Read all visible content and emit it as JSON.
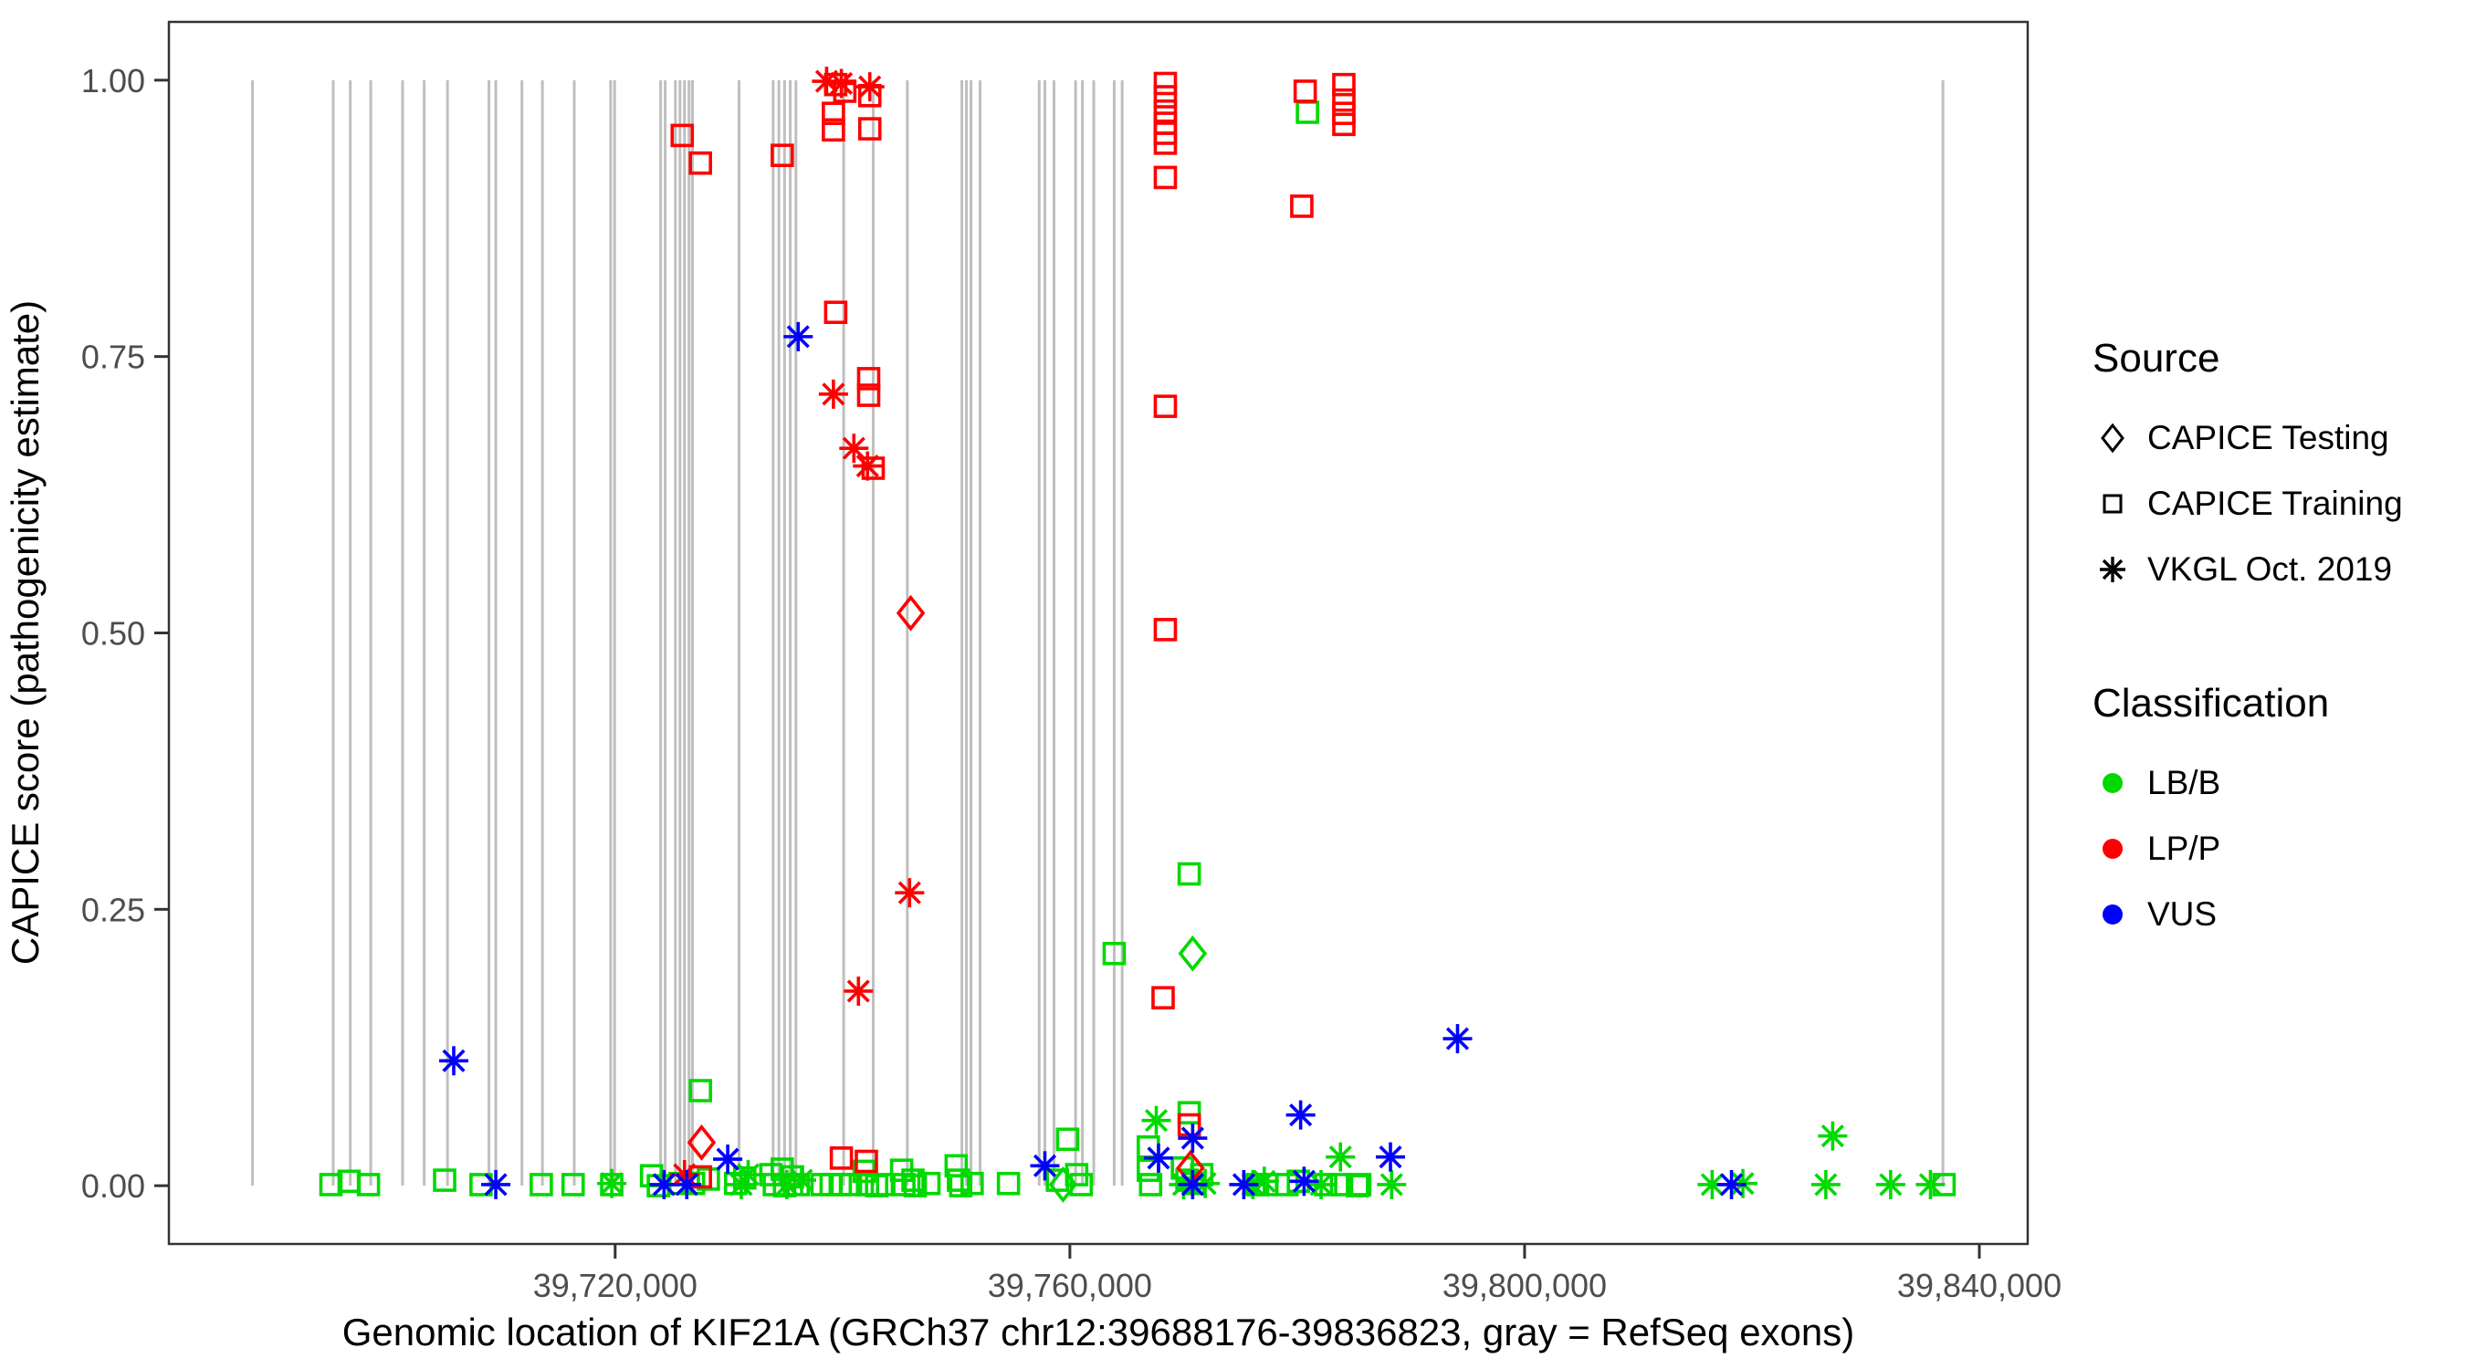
{
  "colors": {
    "LB/B": "#00D900",
    "LP/P": "#FF0000",
    "VUS": "#0000FF",
    "exon": "#BFBFBF",
    "axis_text": "#4D4D4D",
    "panel_border": "#333333",
    "legend_key": "#000000"
  },
  "legend": {
    "source": {
      "title": "Source",
      "items": [
        {
          "symbol": "diamond-open",
          "label": "CAPICE Testing"
        },
        {
          "symbol": "square-open",
          "label": "CAPICE Training"
        },
        {
          "symbol": "asterisk",
          "label": "VKGL Oct. 2019"
        }
      ]
    },
    "classification": {
      "title": "Classification",
      "items": [
        {
          "symbol": "circle",
          "label": "LB/B",
          "color": "#00D900"
        },
        {
          "symbol": "circle",
          "label": "LP/P",
          "color": "#FF0000"
        },
        {
          "symbol": "circle",
          "label": "VUS",
          "color": "#0000FF"
        }
      ]
    }
  },
  "chart_data": {
    "type": "scatter",
    "title": "",
    "xlabel": "Genomic location of KIF21A (GRCh37 chr12:39688176-39836823, gray = RefSeq exons)",
    "ylabel": "CAPICE score (pathogenicity estimate)",
    "gene_range": [
      39688176,
      39836823
    ],
    "x_range_shown": [
      39680744,
      39844255
    ],
    "y_range_shown": [
      -0.0527,
      1.0527
    ],
    "grid": false,
    "legend_position": "right",
    "x_ticks": [
      {
        "value": 39720000,
        "label": "39,720,000"
      },
      {
        "value": 39760000,
        "label": "39,760,000"
      },
      {
        "value": 39800000,
        "label": "39,800,000"
      },
      {
        "value": 39840000,
        "label": "39,840,000"
      }
    ],
    "y_ticks": [
      {
        "value": 0.0,
        "label": "0.00"
      },
      {
        "value": 0.25,
        "label": "0.25"
      },
      {
        "value": 0.5,
        "label": "0.50"
      },
      {
        "value": 0.75,
        "label": "0.75"
      },
      {
        "value": 1.0,
        "label": "1.00"
      }
    ],
    "exons": [
      39688100,
      39695200,
      39696700,
      39698500,
      39701300,
      39703200,
      39705250,
      39708900,
      39709500,
      39711800,
      39713600,
      39716400,
      39719600,
      39719950,
      39724000,
      39724400,
      39725300,
      39725700,
      39726100,
      39726500,
      39726800,
      39730900,
      39733900,
      39734400,
      39734900,
      39735400,
      39735900,
      39740100,
      39742700,
      39745700,
      39750500,
      39750900,
      39751300,
      39752100,
      39757300,
      39757800,
      39758600,
      39760500,
      39761100,
      39762100,
      39763900,
      39764600,
      39836800
    ],
    "points": [
      {
        "x": 39695000,
        "y": 0.001,
        "class": "LB/B",
        "source": "training"
      },
      {
        "x": 39696600,
        "y": 0.004,
        "class": "LB/B",
        "source": "training"
      },
      {
        "x": 39698300,
        "y": 0.001,
        "class": "LB/B",
        "source": "training"
      },
      {
        "x": 39705000,
        "y": 0.005,
        "class": "LB/B",
        "source": "training"
      },
      {
        "x": 39708200,
        "y": 0.001,
        "class": "LB/B",
        "source": "training"
      },
      {
        "x": 39713500,
        "y": 0.001,
        "class": "LB/B",
        "source": "training"
      },
      {
        "x": 39716300,
        "y": 0.001,
        "class": "LB/B",
        "source": "training"
      },
      {
        "x": 39719700,
        "y": 0.001,
        "class": "LB/B",
        "source": "training"
      },
      {
        "x": 39719700,
        "y": 0.002,
        "class": "LB/B",
        "source": "vkgl"
      },
      {
        "x": 39723200,
        "y": 0.009,
        "class": "LB/B",
        "source": "training"
      },
      {
        "x": 39723800,
        "y": 0.0,
        "class": "LB/B",
        "source": "training"
      },
      {
        "x": 39725700,
        "y": 0.002,
        "class": "LB/B",
        "source": "training"
      },
      {
        "x": 39726900,
        "y": 0.002,
        "class": "LB/B",
        "source": "training"
      },
      {
        "x": 39728200,
        "y": 0.006,
        "class": "LB/B",
        "source": "training"
      },
      {
        "x": 39727500,
        "y": 0.086,
        "class": "LB/B",
        "source": "training"
      },
      {
        "x": 39730600,
        "y": 0.002,
        "class": "LB/B",
        "source": "training"
      },
      {
        "x": 39731400,
        "y": 0.007,
        "class": "LB/B",
        "source": "training"
      },
      {
        "x": 39731100,
        "y": 0.001,
        "class": "LB/B",
        "source": "vkgl"
      },
      {
        "x": 39731700,
        "y": 0.01,
        "class": "LB/B",
        "source": "vkgl"
      },
      {
        "x": 39733700,
        "y": 0.01,
        "class": "LB/B",
        "source": "training"
      },
      {
        "x": 39734000,
        "y": 0.001,
        "class": "LB/B",
        "source": "training"
      },
      {
        "x": 39734700,
        "y": 0.015,
        "class": "LB/B",
        "source": "training"
      },
      {
        "x": 39734900,
        "y": 0.0,
        "class": "LB/B",
        "source": "training"
      },
      {
        "x": 39735600,
        "y": 0.008,
        "class": "LB/B",
        "source": "training"
      },
      {
        "x": 39736100,
        "y": 0.001,
        "class": "LB/B",
        "source": "training"
      },
      {
        "x": 39735100,
        "y": 0.001,
        "class": "LB/B",
        "source": "vkgl"
      },
      {
        "x": 39736400,
        "y": 0.005,
        "class": "LB/B",
        "source": "vkgl"
      },
      {
        "x": 39738200,
        "y": 0.001,
        "class": "LB/B",
        "source": "training"
      },
      {
        "x": 39739000,
        "y": 0.001,
        "class": "LB/B",
        "source": "training"
      },
      {
        "x": 39739800,
        "y": 0.001,
        "class": "LB/B",
        "source": "training"
      },
      {
        "x": 39740700,
        "y": 0.001,
        "class": "LB/B",
        "source": "training"
      },
      {
        "x": 39741900,
        "y": 0.013,
        "class": "LB/B",
        "source": "training"
      },
      {
        "x": 39742200,
        "y": 0.001,
        "class": "LB/B",
        "source": "training"
      },
      {
        "x": 39743000,
        "y": 0.0,
        "class": "LB/B",
        "source": "training"
      },
      {
        "x": 39743500,
        "y": 0.001,
        "class": "LB/B",
        "source": "training"
      },
      {
        "x": 39745200,
        "y": 0.014,
        "class": "LB/B",
        "source": "training"
      },
      {
        "x": 39745400,
        "y": 0.001,
        "class": "LB/B",
        "source": "training"
      },
      {
        "x": 39746200,
        "y": 0.005,
        "class": "LB/B",
        "source": "training"
      },
      {
        "x": 39746400,
        "y": 0.0,
        "class": "LB/B",
        "source": "training"
      },
      {
        "x": 39747600,
        "y": 0.002,
        "class": "LB/B",
        "source": "training"
      },
      {
        "x": 39750000,
        "y": 0.018,
        "class": "LB/B",
        "source": "training"
      },
      {
        "x": 39750200,
        "y": 0.005,
        "class": "LB/B",
        "source": "training"
      },
      {
        "x": 39750400,
        "y": 0.0,
        "class": "LB/B",
        "source": "training"
      },
      {
        "x": 39751400,
        "y": 0.002,
        "class": "LB/B",
        "source": "training"
      },
      {
        "x": 39754600,
        "y": 0.002,
        "class": "LB/B",
        "source": "training"
      },
      {
        "x": 39758900,
        "y": 0.005,
        "class": "LB/B",
        "source": "training"
      },
      {
        "x": 39759400,
        "y": 0.001,
        "class": "LB/B",
        "source": "testing"
      },
      {
        "x": 39760600,
        "y": 0.01,
        "class": "LB/B",
        "source": "training"
      },
      {
        "x": 39761000,
        "y": 0.001,
        "class": "LB/B",
        "source": "training"
      },
      {
        "x": 39759800,
        "y": 0.042,
        "class": "LB/B",
        "source": "training"
      },
      {
        "x": 39763900,
        "y": 0.21,
        "class": "LB/B",
        "source": "training"
      },
      {
        "x": 39766900,
        "y": 0.035,
        "class": "LB/B",
        "source": "training"
      },
      {
        "x": 39766900,
        "y": 0.014,
        "class": "LB/B",
        "source": "training"
      },
      {
        "x": 39767100,
        "y": 0.001,
        "class": "LB/B",
        "source": "training"
      },
      {
        "x": 39767600,
        "y": 0.059,
        "class": "LB/B",
        "source": "vkgl"
      },
      {
        "x": 39770500,
        "y": 0.282,
        "class": "LB/B",
        "source": "training"
      },
      {
        "x": 39770800,
        "y": 0.21,
        "class": "LB/B",
        "source": "testing"
      },
      {
        "x": 39770500,
        "y": 0.066,
        "class": "LB/B",
        "source": "training"
      },
      {
        "x": 39769900,
        "y": 0.016,
        "class": "LB/B",
        "source": "training"
      },
      {
        "x": 39770300,
        "y": 0.005,
        "class": "LB/B",
        "source": "training"
      },
      {
        "x": 39770000,
        "y": 0.001,
        "class": "LB/B",
        "source": "vkgl"
      },
      {
        "x": 39770900,
        "y": 0.002,
        "class": "LB/B",
        "source": "training"
      },
      {
        "x": 39771600,
        "y": 0.01,
        "class": "LB/B",
        "source": "training"
      },
      {
        "x": 39771900,
        "y": 0.002,
        "class": "LB/B",
        "source": "vkgl"
      },
      {
        "x": 39776100,
        "y": 0.001,
        "class": "LB/B",
        "source": "vkgl"
      },
      {
        "x": 39776500,
        "y": 0.001,
        "class": "LB/B",
        "source": "training"
      },
      {
        "x": 39777100,
        "y": 0.004,
        "class": "LB/B",
        "source": "vkgl"
      },
      {
        "x": 39777300,
        "y": 0.001,
        "class": "LB/B",
        "source": "training"
      },
      {
        "x": 39779100,
        "y": 0.001,
        "class": "LB/B",
        "source": "training"
      },
      {
        "x": 39780100,
        "y": 0.004,
        "class": "LB/B",
        "source": "training"
      },
      {
        "x": 39782100,
        "y": 0.001,
        "class": "LB/B",
        "source": "vkgl"
      },
      {
        "x": 39782500,
        "y": 0.001,
        "class": "LB/B",
        "source": "training"
      },
      {
        "x": 39783800,
        "y": 0.026,
        "class": "LB/B",
        "source": "vkgl"
      },
      {
        "x": 39783900,
        "y": 0.001,
        "class": "LB/B",
        "source": "training"
      },
      {
        "x": 39785300,
        "y": 0.0,
        "class": "LB/B",
        "source": "training"
      },
      {
        "x": 39785500,
        "y": 0.001,
        "class": "LB/B",
        "source": "training"
      },
      {
        "x": 39788300,
        "y": 0.001,
        "class": "LB/B",
        "source": "vkgl"
      },
      {
        "x": 39780900,
        "y": 0.971,
        "class": "LB/B",
        "source": "training"
      },
      {
        "x": 39816500,
        "y": 0.001,
        "class": "LB/B",
        "source": "vkgl"
      },
      {
        "x": 39819200,
        "y": 0.002,
        "class": "LB/B",
        "source": "vkgl"
      },
      {
        "x": 39826500,
        "y": 0.001,
        "class": "LB/B",
        "source": "vkgl"
      },
      {
        "x": 39827100,
        "y": 0.045,
        "class": "LB/B",
        "source": "vkgl"
      },
      {
        "x": 39832200,
        "y": 0.001,
        "class": "LB/B",
        "source": "vkgl"
      },
      {
        "x": 39835700,
        "y": 0.001,
        "class": "LB/B",
        "source": "vkgl"
      },
      {
        "x": 39836900,
        "y": 0.001,
        "class": "LB/B",
        "source": "training"
      },
      {
        "x": 39725900,
        "y": 0.95,
        "class": "LP/P",
        "source": "training"
      },
      {
        "x": 39727500,
        "y": 0.925,
        "class": "LP/P",
        "source": "training"
      },
      {
        "x": 39734700,
        "y": 0.932,
        "class": "LP/P",
        "source": "training"
      },
      {
        "x": 39738600,
        "y": 0.999,
        "class": "LP/P",
        "source": "vkgl"
      },
      {
        "x": 39739900,
        "y": 0.997,
        "class": "LP/P",
        "source": "vkgl"
      },
      {
        "x": 39739400,
        "y": 0.996,
        "class": "LP/P",
        "source": "training"
      },
      {
        "x": 39740200,
        "y": 0.99,
        "class": "LP/P",
        "source": "training"
      },
      {
        "x": 39739200,
        "y": 0.97,
        "class": "LP/P",
        "source": "training"
      },
      {
        "x": 39739200,
        "y": 0.955,
        "class": "LP/P",
        "source": "training"
      },
      {
        "x": 39742400,
        "y": 0.994,
        "class": "LP/P",
        "source": "vkgl"
      },
      {
        "x": 39742400,
        "y": 0.986,
        "class": "LP/P",
        "source": "training"
      },
      {
        "x": 39742400,
        "y": 0.956,
        "class": "LP/P",
        "source": "training"
      },
      {
        "x": 39739400,
        "y": 0.79,
        "class": "LP/P",
        "source": "training"
      },
      {
        "x": 39739200,
        "y": 0.716,
        "class": "LP/P",
        "source": "vkgl"
      },
      {
        "x": 39742300,
        "y": 0.73,
        "class": "LP/P",
        "source": "training"
      },
      {
        "x": 39742300,
        "y": 0.715,
        "class": "LP/P",
        "source": "training"
      },
      {
        "x": 39741000,
        "y": 0.667,
        "class": "LP/P",
        "source": "vkgl"
      },
      {
        "x": 39742200,
        "y": 0.651,
        "class": "LP/P",
        "source": "vkgl"
      },
      {
        "x": 39742700,
        "y": 0.649,
        "class": "LP/P",
        "source": "training"
      },
      {
        "x": 39746000,
        "y": 0.518,
        "class": "LP/P",
        "source": "testing"
      },
      {
        "x": 39745900,
        "y": 0.265,
        "class": "LP/P",
        "source": "vkgl"
      },
      {
        "x": 39741400,
        "y": 0.176,
        "class": "LP/P",
        "source": "vkgl"
      },
      {
        "x": 39768400,
        "y": 0.997,
        "class": "LP/P",
        "source": "training"
      },
      {
        "x": 39768400,
        "y": 0.985,
        "class": "LP/P",
        "source": "training"
      },
      {
        "x": 39768400,
        "y": 0.972,
        "class": "LP/P",
        "source": "training"
      },
      {
        "x": 39768400,
        "y": 0.961,
        "class": "LP/P",
        "source": "training"
      },
      {
        "x": 39768400,
        "y": 0.952,
        "class": "LP/P",
        "source": "training"
      },
      {
        "x": 39768400,
        "y": 0.943,
        "class": "LP/P",
        "source": "training"
      },
      {
        "x": 39768400,
        "y": 0.912,
        "class": "LP/P",
        "source": "training"
      },
      {
        "x": 39768400,
        "y": 0.705,
        "class": "LP/P",
        "source": "training"
      },
      {
        "x": 39768400,
        "y": 0.503,
        "class": "LP/P",
        "source": "training"
      },
      {
        "x": 39768200,
        "y": 0.17,
        "class": "LP/P",
        "source": "training"
      },
      {
        "x": 39770500,
        "y": 0.055,
        "class": "LP/P",
        "source": "training"
      },
      {
        "x": 39770600,
        "y": 0.016,
        "class": "LP/P",
        "source": "testing"
      },
      {
        "x": 39780700,
        "y": 0.99,
        "class": "LP/P",
        "source": "training"
      },
      {
        "x": 39784100,
        "y": 0.996,
        "class": "LP/P",
        "source": "training"
      },
      {
        "x": 39784100,
        "y": 0.982,
        "class": "LP/P",
        "source": "training"
      },
      {
        "x": 39784100,
        "y": 0.97,
        "class": "LP/P",
        "source": "training"
      },
      {
        "x": 39784100,
        "y": 0.96,
        "class": "LP/P",
        "source": "training"
      },
      {
        "x": 39780400,
        "y": 0.886,
        "class": "LP/P",
        "source": "training"
      },
      {
        "x": 39727500,
        "y": 0.008,
        "class": "LP/P",
        "source": "training"
      },
      {
        "x": 39726100,
        "y": 0.01,
        "class": "LP/P",
        "source": "vkgl"
      },
      {
        "x": 39727600,
        "y": 0.039,
        "class": "LP/P",
        "source": "testing"
      },
      {
        "x": 39739900,
        "y": 0.025,
        "class": "LP/P",
        "source": "training"
      },
      {
        "x": 39742100,
        "y": 0.022,
        "class": "LP/P",
        "source": "training"
      },
      {
        "x": 39705800,
        "y": 0.113,
        "class": "VUS",
        "source": "vkgl"
      },
      {
        "x": 39709500,
        "y": 0.001,
        "class": "VUS",
        "source": "vkgl"
      },
      {
        "x": 39724300,
        "y": 0.001,
        "class": "VUS",
        "source": "vkgl"
      },
      {
        "x": 39726300,
        "y": 0.001,
        "class": "VUS",
        "source": "vkgl"
      },
      {
        "x": 39729900,
        "y": 0.024,
        "class": "VUS",
        "source": "vkgl"
      },
      {
        "x": 39736100,
        "y": 0.768,
        "class": "VUS",
        "source": "vkgl"
      },
      {
        "x": 39757800,
        "y": 0.018,
        "class": "VUS",
        "source": "vkgl"
      },
      {
        "x": 39767800,
        "y": 0.025,
        "class": "VUS",
        "source": "vkgl"
      },
      {
        "x": 39770800,
        "y": 0.043,
        "class": "VUS",
        "source": "vkgl"
      },
      {
        "x": 39770800,
        "y": 0.001,
        "class": "VUS",
        "source": "vkgl"
      },
      {
        "x": 39775300,
        "y": 0.001,
        "class": "VUS",
        "source": "vkgl"
      },
      {
        "x": 39780300,
        "y": 0.064,
        "class": "VUS",
        "source": "vkgl"
      },
      {
        "x": 39780600,
        "y": 0.004,
        "class": "VUS",
        "source": "vkgl"
      },
      {
        "x": 39788200,
        "y": 0.026,
        "class": "VUS",
        "source": "vkgl"
      },
      {
        "x": 39794100,
        "y": 0.133,
        "class": "VUS",
        "source": "vkgl"
      },
      {
        "x": 39818200,
        "y": 0.001,
        "class": "VUS",
        "source": "vkgl"
      }
    ]
  }
}
